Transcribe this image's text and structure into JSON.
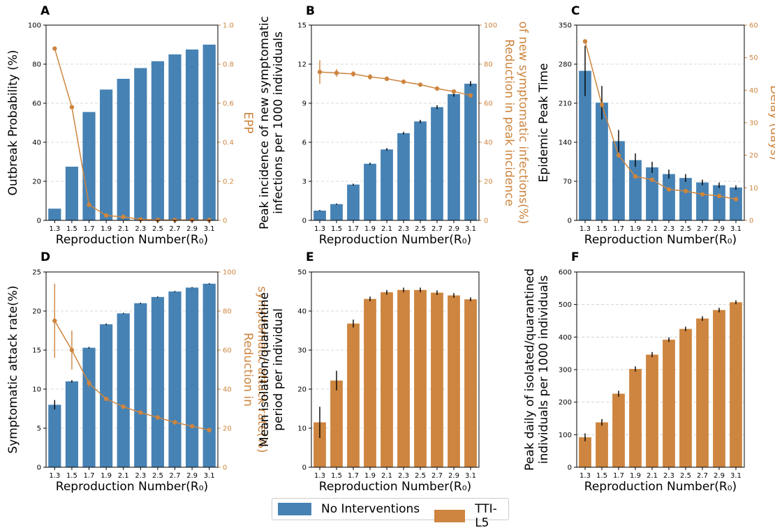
{
  "colors": {
    "blue": "#4682b4",
    "orange": "#cd853f",
    "axis": "#000000",
    "grid": "#cccccc"
  },
  "legend": {
    "items": [
      {
        "label": "No Interventions",
        "color": "#4682b4"
      },
      {
        "label": "TTI-L5",
        "color": "#cd853f"
      }
    ]
  },
  "chart_data": [
    {
      "panel": "A",
      "type": "bar",
      "title": "",
      "xlabel": "Reproduction Number(R₀)",
      "ylabel": "Outbreak Probability (%)",
      "ylim": [
        0,
        100
      ],
      "yticks": [
        "0",
        "20",
        "40",
        "60",
        "80",
        "100"
      ],
      "y2label": "EPP",
      "y2lim": [
        0,
        1
      ],
      "y2ticks": [
        "0",
        "0.2",
        "0.4",
        "0.6",
        "0.8",
        "1.0"
      ],
      "categories": [
        "1.3",
        "1.5",
        "1.7",
        "1.9",
        "2.1",
        "2.3",
        "2.5",
        "2.7",
        "2.9",
        "3.1"
      ],
      "bar_color": "#4682b4",
      "values": [
        6,
        27.5,
        55.5,
        67,
        72.5,
        78,
        81.5,
        85,
        87.5,
        90
      ],
      "errors": [
        0,
        0,
        0,
        0,
        0,
        0,
        0,
        0,
        0,
        0
      ],
      "line_values": [
        0.88,
        0.58,
        0.08,
        0.025,
        0.018,
        0.005,
        0.002,
        0.002,
        0.002,
        0.002
      ],
      "line_errors": [
        0,
        0,
        0,
        0,
        0,
        0,
        0,
        0,
        0,
        0
      ]
    },
    {
      "panel": "B",
      "type": "bar",
      "title": "",
      "xlabel": "Reproduction Number(R₀)",
      "ylabel": "Peak incidence of new symptomatic\ninfections per 1000 individuals",
      "ylim": [
        0,
        15
      ],
      "yticks": [
        "0",
        "3",
        "6",
        "9",
        "12",
        "15"
      ],
      "y2label": "Reduction in peak incidence\nof new symptomatic infections(%)",
      "y2lim": [
        0,
        100
      ],
      "y2ticks": [
        "0",
        "20",
        "40",
        "60",
        "80",
        "100"
      ],
      "categories": [
        "1.3",
        "1.5",
        "1.7",
        "1.9",
        "2.1",
        "2.3",
        "2.5",
        "2.7",
        "2.9",
        "3.1"
      ],
      "bar_color": "#4682b4",
      "values": [
        0.75,
        1.25,
        2.75,
        4.35,
        5.45,
        6.7,
        7.6,
        8.7,
        9.7,
        10.5
      ],
      "errors": [
        0.05,
        0.05,
        0.07,
        0.08,
        0.1,
        0.1,
        0.12,
        0.15,
        0.2,
        0.2
      ],
      "line_values": [
        76,
        75.5,
        75,
        73.5,
        72.5,
        71,
        69.5,
        67.5,
        66,
        64
      ],
      "line_errors": [
        6,
        2,
        1.5,
        1.5,
        1,
        1,
        1,
        1,
        1,
        1
      ]
    },
    {
      "panel": "C",
      "type": "bar",
      "title": "",
      "xlabel": "Reproduction Number(R₀)",
      "ylabel": "Epidemic Peak Time",
      "ylim": [
        0,
        350
      ],
      "yticks": [
        "0",
        "70",
        "140",
        "210",
        "280",
        "350"
      ],
      "y2label": "Delay (days)",
      "y2lim": [
        0,
        60
      ],
      "y2ticks": [
        "0",
        "10",
        "20",
        "30",
        "40",
        "50",
        "60"
      ],
      "categories": [
        "1.3",
        "1.5",
        "1.7",
        "1.9",
        "2.1",
        "2.3",
        "2.5",
        "2.7",
        "2.9",
        "3.1"
      ],
      "bar_color": "#4682b4",
      "values": [
        268,
        211,
        142,
        108,
        95,
        83,
        76,
        68,
        63,
        59
      ],
      "errors": [
        45,
        30,
        20,
        12,
        10,
        8,
        7,
        5,
        5,
        4
      ],
      "line_values": [
        55,
        35.5,
        20,
        13.5,
        12.5,
        9.5,
        9,
        8,
        7.5,
        6.5
      ],
      "line_errors": [
        0,
        0,
        0,
        0,
        0,
        0,
        0,
        0,
        0,
        0
      ]
    },
    {
      "panel": "D",
      "type": "bar",
      "title": "",
      "xlabel": "Reproduction Number(R₀)",
      "ylabel": "Symptomatic attack rate(%)",
      "ylim": [
        0,
        25
      ],
      "yticks": [
        "0",
        "5",
        "10",
        "15",
        "20",
        "25"
      ],
      "y2label": "Reduction in\nsymptomatic attack rate(%)",
      "y2lim": [
        0,
        100
      ],
      "y2ticks": [
        "0",
        "20",
        "40",
        "60",
        "80",
        "100"
      ],
      "categories": [
        "1.3",
        "1.5",
        "1.7",
        "1.9",
        "2.1",
        "2.3",
        "2.5",
        "2.7",
        "2.9",
        "3.1"
      ],
      "bar_color": "#4682b4",
      "values": [
        8,
        11,
        15.3,
        18.3,
        19.7,
        21,
        21.8,
        22.5,
        23,
        23.5
      ],
      "errors": [
        0.6,
        0.15,
        0.1,
        0.1,
        0.07,
        0.07,
        0.07,
        0.07,
        0.07,
        0.07
      ],
      "line_values": [
        75,
        60,
        43,
        35,
        31,
        28,
        25.5,
        23,
        21,
        19
      ],
      "line_errors": [
        19,
        10,
        2,
        1,
        1,
        1,
        1,
        1,
        1,
        1
      ]
    },
    {
      "panel": "E",
      "type": "bar",
      "title": "",
      "xlabel": "Reproduction Number(R₀)",
      "ylabel": "Mean isolation/quarantine\nperiod per individual",
      "ylim": [
        0,
        50
      ],
      "yticks": [
        "0",
        "10",
        "20",
        "30",
        "40",
        "50"
      ],
      "categories": [
        "1.3",
        "1.5",
        "1.7",
        "1.9",
        "2.1",
        "2.3",
        "2.5",
        "2.7",
        "2.9",
        "3.1"
      ],
      "bar_color": "#cd853f",
      "values": [
        11.5,
        22.2,
        36.8,
        43.1,
        44.8,
        45.4,
        45.4,
        44.7,
        44,
        43
      ],
      "errors": [
        4,
        2.5,
        1,
        0.6,
        0.6,
        0.6,
        0.6,
        0.6,
        0.6,
        0.5
      ]
    },
    {
      "panel": "F",
      "type": "bar",
      "title": "",
      "xlabel": "Reproduction Number(R₀)",
      "ylabel": "Peak daily of isolated/quarantined\nindividuals per 1000 individuals",
      "ylim": [
        0,
        600
      ],
      "yticks": [
        "0",
        "100",
        "200",
        "300",
        "400",
        "500",
        "600"
      ],
      "categories": [
        "1.3",
        "1.5",
        "1.7",
        "1.9",
        "2.1",
        "2.3",
        "2.5",
        "2.7",
        "2.9",
        "3.1"
      ],
      "bar_color": "#cd853f",
      "values": [
        92,
        138,
        226,
        302,
        346,
        392,
        425,
        457,
        483,
        507
      ],
      "errors": [
        12,
        10,
        9,
        8,
        8,
        7,
        7,
        7,
        7,
        6
      ]
    }
  ]
}
